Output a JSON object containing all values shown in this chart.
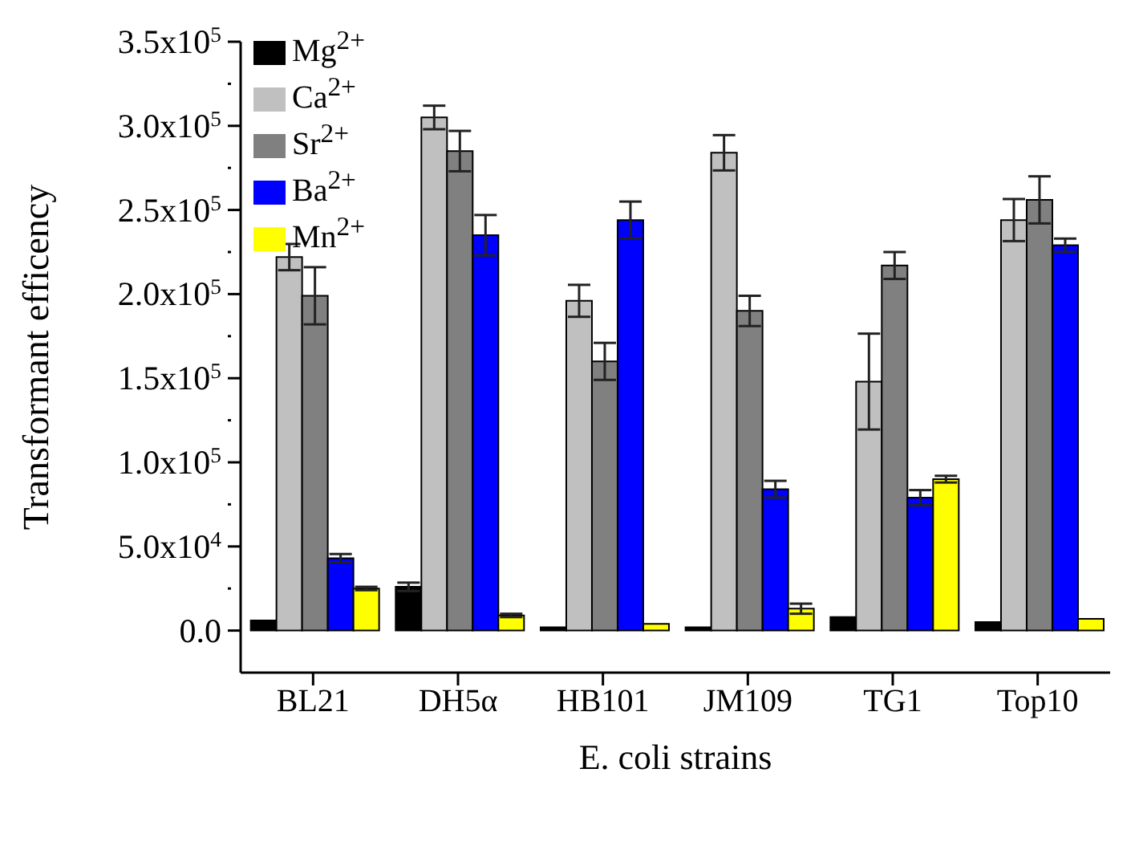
{
  "chart_data": {
    "type": "bar",
    "xlabel": "E. coli strains",
    "ylabel": "Transformant efficency",
    "categories": [
      "BL21",
      "DH5α",
      "HB101",
      "JM109",
      "TG1",
      "Top10"
    ],
    "series": [
      {
        "name": "Mg$^{2+}$",
        "color": "#000000",
        "values": [
          6000,
          26000,
          2000,
          2000,
          8000,
          5000
        ],
        "errors": [
          null,
          2500,
          null,
          null,
          null,
          null
        ]
      },
      {
        "name": "Ca$^{2+}$",
        "color": "#c0c0c0",
        "values": [
          222000,
          305000,
          196000,
          284000,
          148000,
          244000
        ],
        "errors": [
          7800,
          7000,
          9500,
          10500,
          28500,
          12500
        ]
      },
      {
        "name": "Sr$^{2+}$",
        "color": "#808080",
        "values": [
          199000,
          285000,
          160000,
          190000,
          217000,
          256000
        ],
        "errors": [
          17000,
          12000,
          11000,
          9000,
          8000,
          14000
        ]
      },
      {
        "name": "Ba$^{2+}$",
        "color": "#0000ff",
        "values": [
          43000,
          235000,
          244000,
          84000,
          79000,
          229000
        ],
        "errors": [
          2500,
          12000,
          11000,
          5000,
          4500,
          4000
        ]
      },
      {
        "name": "Mn$^{2+}$",
        "color": "#ffff00",
        "values": [
          25000,
          9000,
          4000,
          13000,
          90000,
          7000
        ],
        "errors": [
          1000,
          1000,
          null,
          3000,
          2000,
          null
        ]
      }
    ],
    "ylim": [
      -25000,
      350000
    ],
    "yticks": [
      {
        "value": 0,
        "label": "0.0"
      },
      {
        "value": 25000,
        "label": null
      },
      {
        "value": 50000,
        "label": "5.0x10$^{4}$"
      },
      {
        "value": 75000,
        "label": null
      },
      {
        "value": 100000,
        "label": "1.0x10$^{5}$"
      },
      {
        "value": 125000,
        "label": null
      },
      {
        "value": 150000,
        "label": "1.5x10$^{5}$"
      },
      {
        "value": 175000,
        "label": null
      },
      {
        "value": 200000,
        "label": "2.0x10$^{5}$"
      },
      {
        "value": 225000,
        "label": null
      },
      {
        "value": 250000,
        "label": "2.5x10$^{5}$"
      },
      {
        "value": 275000,
        "label": null
      },
      {
        "value": 300000,
        "label": "3.0x10$^{5}$"
      },
      {
        "value": 325000,
        "label": null
      },
      {
        "value": 350000,
        "label": "3.5x10$^{5}$"
      }
    ],
    "grid": false,
    "legend": "top left"
  }
}
